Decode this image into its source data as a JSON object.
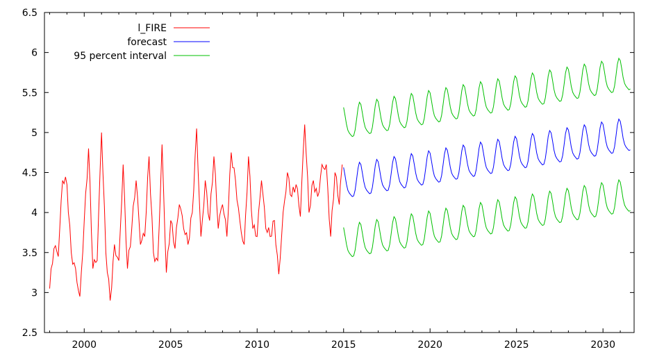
{
  "chart_data": {
    "type": "line",
    "title": "",
    "xlabel": "",
    "ylabel": "",
    "xlim": [
      1997.7,
      2031.8
    ],
    "ylim": [
      2.5,
      6.5
    ],
    "xticks": [
      2000,
      2005,
      2010,
      2015,
      2020,
      2025,
      2030
    ],
    "yticks": [
      2.5,
      3,
      3.5,
      4,
      4.5,
      5,
      5.5,
      6,
      6.5
    ],
    "xtick_labels": [
      "2000",
      "2005",
      "2010",
      "2015",
      "2020",
      "2025",
      "2030"
    ],
    "ytick_labels": [
      "2.5",
      "3",
      "3.5",
      "4",
      "4.5",
      "5",
      "5.5",
      "6",
      "6.5"
    ],
    "grid": false,
    "legend_position": "top-left",
    "series": [
      {
        "name": "l_FIRE",
        "color": "#ff0000",
        "x": [
          1998.0,
          1998.25,
          1998.5,
          1998.75,
          1999.0,
          1999.25,
          1999.5,
          1999.75,
          2000.0,
          2000.25,
          2000.5,
          2000.75,
          2001.0,
          2001.25,
          2001.5,
          2001.75,
          2002.0,
          2002.25,
          2002.5,
          2002.75,
          2003.0,
          2003.25,
          2003.5,
          2003.75,
          2004.0,
          2004.25,
          2004.5,
          2004.75,
          2005.0,
          2005.25,
          2005.5,
          2005.75,
          2006.0,
          2006.25,
          2006.5,
          2006.75,
          2007.0,
          2007.25,
          2007.5,
          2007.75,
          2008.0,
          2008.25,
          2008.5,
          2008.75,
          2009.0,
          2009.25,
          2009.5,
          2009.75,
          2010.0,
          2010.25,
          2010.5,
          2010.75,
          2011.0,
          2011.25,
          2011.5,
          2011.75,
          2012.0,
          2012.25,
          2012.5,
          2012.75,
          2013.0,
          2013.25,
          2013.5,
          2013.75,
          2014.0,
          2014.25,
          2014.5,
          2014.75,
          2014.92
        ],
        "y": [
          3.05,
          3.55,
          3.45,
          4.4,
          4.35,
          3.5,
          3.3,
          2.95,
          3.9,
          4.8,
          3.3,
          3.4,
          5.0,
          3.5,
          2.9,
          3.6,
          3.4,
          4.6,
          3.3,
          3.8,
          4.4,
          3.6,
          3.7,
          4.7,
          3.5,
          3.4,
          4.85,
          3.25,
          3.9,
          3.55,
          4.1,
          3.8,
          3.6,
          4.0,
          5.05,
          3.7,
          4.4,
          3.9,
          4.7,
          3.8,
          4.1,
          3.7,
          4.75,
          4.4,
          3.9,
          3.6,
          4.7,
          3.8,
          3.7,
          4.4,
          3.8,
          3.7,
          3.9,
          3.23,
          4.0,
          4.5,
          4.2,
          4.35,
          3.95,
          5.1,
          4.0,
          4.4,
          4.2,
          4.6,
          4.6,
          3.7,
          4.5,
          4.1,
          4.6
        ]
      },
      {
        "name": "forecast",
        "color": "#0000ff",
        "start": 2015.0,
        "period": 1.0,
        "base": 4.35,
        "slope": 0.036,
        "amplitude": 0.2,
        "end": 2031.55
      },
      {
        "name": "95 percent interval",
        "color": "#00c000",
        "offset_start": 0.75,
        "offset_end": 0.74
      }
    ]
  }
}
